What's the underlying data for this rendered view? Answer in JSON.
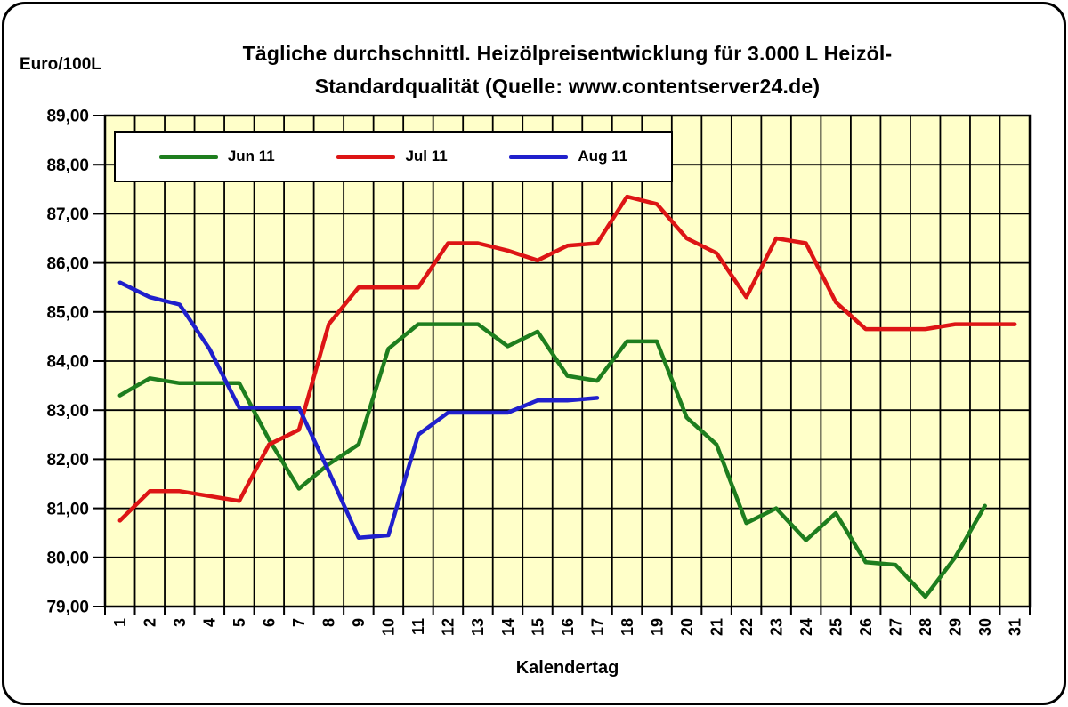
{
  "title_lines": [
    "Tägliche durchschnittl. Heizölpreisentwicklung für 3.000 L Heizöl-",
    "Standardqualität (Quelle: www.contentserver24.de)"
  ],
  "unit_label": "Euro/100L",
  "chart_data": {
    "type": "line",
    "title": "Tägliche durchschnittl. Heizölpreisentwicklung für 3.000 L Heizöl-Standardqualität (Quelle: www.contentserver24.de)",
    "xlabel": "Kalendertag",
    "ylabel": "Euro/100L",
    "x": [
      1,
      2,
      3,
      4,
      5,
      6,
      7,
      8,
      9,
      10,
      11,
      12,
      13,
      14,
      15,
      16,
      17,
      18,
      19,
      20,
      21,
      22,
      23,
      24,
      25,
      26,
      27,
      28,
      29,
      30,
      31
    ],
    "ylim": [
      79,
      89
    ],
    "y_tick_step": 1,
    "decimal_comma": true,
    "grid": true,
    "plot_bg": "#ffffc9",
    "grid_color": "#000000",
    "legend_position": "top-inside",
    "series": [
      {
        "name": "Jun 11",
        "color": "#1e7e1e",
        "values": [
          83.3,
          83.65,
          83.55,
          83.55,
          83.55,
          82.4,
          81.4,
          81.9,
          82.3,
          84.25,
          84.75,
          84.75,
          84.75,
          84.3,
          84.6,
          83.7,
          83.6,
          84.4,
          84.4,
          82.85,
          82.3,
          80.7,
          81.0,
          80.35,
          80.9,
          79.9,
          79.85,
          79.2,
          80.0,
          81.05,
          null
        ]
      },
      {
        "name": "Jul 11",
        "color": "#dd1515",
        "values": [
          80.75,
          81.35,
          81.35,
          81.25,
          81.15,
          82.3,
          82.6,
          84.75,
          85.5,
          85.5,
          85.5,
          86.4,
          86.4,
          86.25,
          86.05,
          86.35,
          86.4,
          87.35,
          87.2,
          86.5,
          86.2,
          85.3,
          86.5,
          86.4,
          85.2,
          84.65,
          84.65,
          84.65,
          84.75,
          84.75,
          84.75
        ]
      },
      {
        "name": "Aug 11",
        "color": "#2020cc",
        "values": [
          85.6,
          85.3,
          85.15,
          84.25,
          83.05,
          83.05,
          83.05,
          81.75,
          80.4,
          80.45,
          82.5,
          82.95,
          82.95,
          82.95,
          83.2,
          83.2,
          83.25,
          null,
          null,
          null,
          null,
          null,
          null,
          null,
          null,
          null,
          null,
          null,
          null,
          null,
          null
        ]
      }
    ]
  }
}
